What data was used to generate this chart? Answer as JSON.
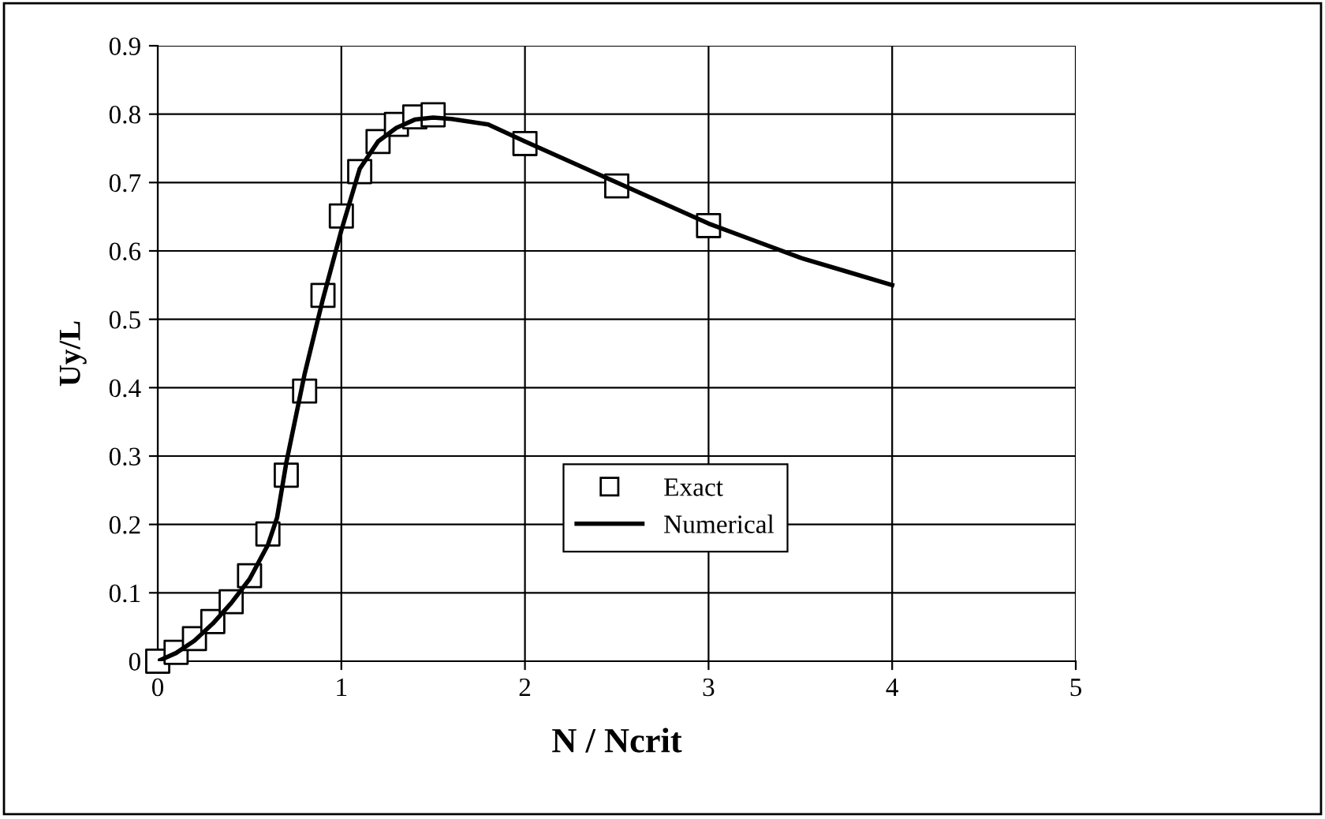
{
  "chart_data": {
    "type": "line",
    "xlabel": "N / Ncrit",
    "ylabel": "Uy/L",
    "xlim": [
      0,
      5
    ],
    "xticks": [
      0,
      1,
      2,
      3,
      4,
      5
    ],
    "ylim": [
      0,
      0.9
    ],
    "yticks": [
      0,
      0.1,
      0.2,
      0.3,
      0.4,
      0.5,
      0.6,
      0.7,
      0.8,
      0.9
    ],
    "grid": true,
    "legend": "center",
    "series": [
      {
        "name": "Exact",
        "type": "scatter",
        "marker": "square",
        "color": "#000000",
        "x": [
          0,
          0.1,
          0.2,
          0.3,
          0.4,
          0.5,
          0.6,
          0.7,
          0.8,
          0.9,
          1.0,
          1.1,
          1.2,
          1.3,
          1.4,
          1.5,
          2,
          2.5,
          3
        ],
        "values": [
          0,
          0.013,
          0.033,
          0.058,
          0.087,
          0.125,
          0.186,
          0.272,
          0.395,
          0.535,
          0.651,
          0.716,
          0.76,
          0.785,
          0.796,
          0.799,
          0.757,
          0.695,
          0.637
        ]
      },
      {
        "name": "Numerical",
        "marker": "none",
        "line_style": "solid",
        "color": "#000000",
        "x": [
          0,
          0.1,
          0.2,
          0.3,
          0.4,
          0.5,
          0.6,
          0.65,
          0.7,
          0.8,
          0.9,
          1.0,
          1.1,
          1.2,
          1.3,
          1.4,
          1.5,
          1.6,
          1.8,
          2.0,
          2.25,
          2.5,
          2.75,
          3,
          3.25,
          3.5,
          3.75,
          4
        ],
        "values": [
          0,
          0.012,
          0.03,
          0.055,
          0.085,
          0.12,
          0.17,
          0.21,
          0.29,
          0.42,
          0.53,
          0.63,
          0.72,
          0.76,
          0.78,
          0.792,
          0.795,
          0.793,
          0.785,
          0.76,
          0.73,
          0.7,
          0.67,
          0.64,
          0.615,
          0.59,
          0.57,
          0.55
        ]
      }
    ]
  }
}
